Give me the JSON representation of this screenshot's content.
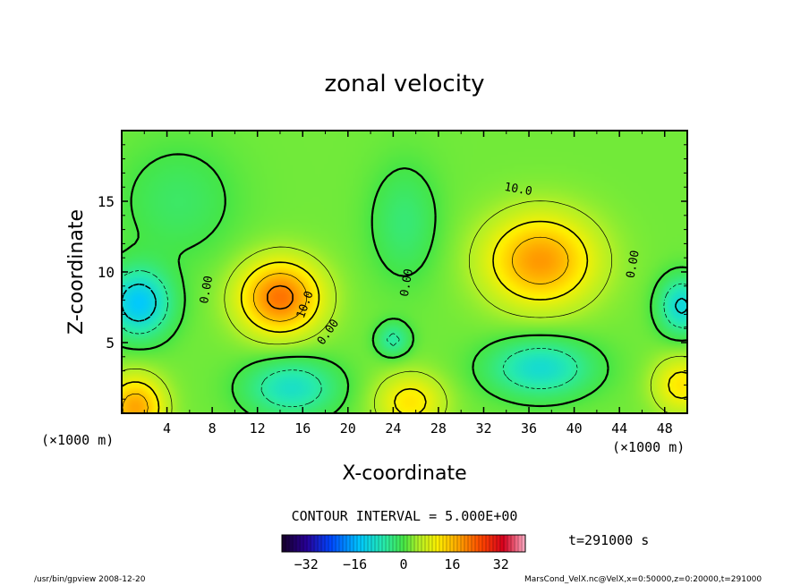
{
  "chart_data": {
    "type": "heatmap",
    "title": "zonal velocity",
    "xlabel": "X-coordinate",
    "ylabel": "Z-coordinate",
    "x_unit_label": "(×1000 m)",
    "y_unit_label": "(×1000 m)",
    "xlim": [
      0,
      50
    ],
    "ylim": [
      0,
      20
    ],
    "x_ticks": [
      4,
      8,
      12,
      16,
      20,
      24,
      28,
      32,
      36,
      40,
      44,
      48
    ],
    "y_ticks": [
      5,
      10,
      15
    ],
    "contour_interval_label": "CONTOUR INTERVAL = 5.000E+00",
    "contour_labels": [
      "0.00",
      "0.00",
      "0.00",
      "0.00",
      "10.0",
      "10.0"
    ],
    "time_label": "t=291000 s",
    "colorbar": {
      "range": [
        -40,
        40
      ],
      "ticks": [
        -32,
        -16,
        0,
        16,
        32
      ]
    },
    "field": {
      "background": 2,
      "features": [
        {
          "x": 14,
          "z": 8.2,
          "sx": 3.6,
          "sy": 2.6,
          "amp": 20
        },
        {
          "x": 37,
          "z": 10.8,
          "sx": 4.8,
          "sy": 3.2,
          "amp": 17
        },
        {
          "x": 1.2,
          "z": 0.4,
          "sx": 2.5,
          "sy": 2.2,
          "amp": 16
        },
        {
          "x": 25.5,
          "z": 0.8,
          "sx": 3.0,
          "sy": 2.0,
          "amp": 10
        },
        {
          "x": 49.5,
          "z": 2.0,
          "sx": 2.5,
          "sy": 2.0,
          "amp": 10
        },
        {
          "x": 1.5,
          "z": 7.8,
          "sx": 2.8,
          "sy": 2.4,
          "amp": -16
        },
        {
          "x": 49.5,
          "z": 7.6,
          "sx": 2.0,
          "sy": 2.0,
          "amp": -13
        },
        {
          "x": 37,
          "z": 3.2,
          "sx": 4.5,
          "sy": 2.0,
          "amp": -12
        },
        {
          "x": 15,
          "z": 1.8,
          "sx": 4.0,
          "sy": 2.0,
          "amp": -11
        },
        {
          "x": 25,
          "z": 13.5,
          "sx": 3.0,
          "sy": 4.0,
          "amp": -5
        },
        {
          "x": 5,
          "z": 15,
          "sx": 5.0,
          "sy": 4.0,
          "amp": -4
        },
        {
          "x": 24,
          "z": 5.2,
          "sx": 1.5,
          "sy": 1.2,
          "amp": -8
        }
      ]
    }
  },
  "footer": {
    "left": "/usr/bin/gpview   2008-12-20",
    "right": "MarsCond_VelX.nc@VelX,x=0:50000,z=0:20000,t=291000"
  }
}
